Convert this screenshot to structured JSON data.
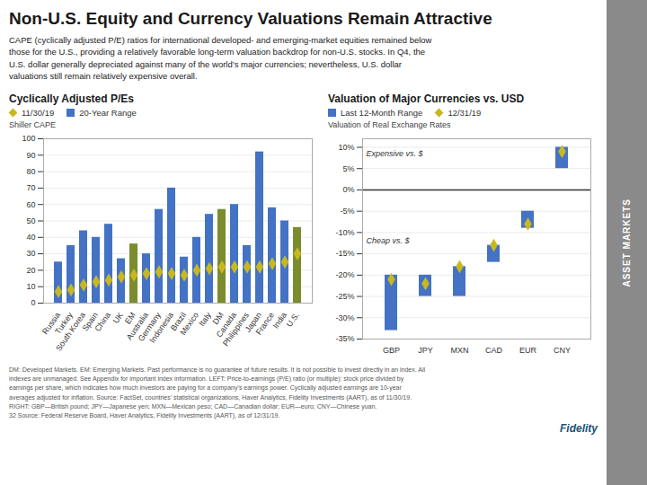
{
  "title": "Non-U.S. Equity and Currency Valuations Remain Attractive",
  "subtitle": "CAPE (cyclically adjusted P/E) ratios for international developed- and emerging-market equities remained below\nthose for the U.S., providing a relatively favorable long-term valuation backdrop for non-U.S. stocks. In Q4, the\nU.S. dollar generally depreciated against many of the world’s major currencies; nevertheless, U.S. dollar\nvaluations still remain relatively expensive overall.",
  "footer": "DM: Developed Markets. EM: Emerging Markets. Past performance is no guarantee of future results. It is not possible to invest directly in an index. All\nindexes are unmanaged. See Appendix for important index information.  LEFT: Price-to-earnings (P/E) ratio (or multiple): stock price divided by\nearnings per share, which indicates how much investors are paying for a company’s earnings power. Cyclically adjusted earnings are 10-year\naverages adjusted for inflation. Source: FactSet, countries’ statistical organizations, Haver Analytics, Fidelity Investments (AART), as of 11/30/19.\nRIGHT: GBP—British pound; JPY—Japanese yen; MXN—Mexican peso; CAD—Canadian dollar; EUR—euro; CNY—Chinese yuan.\n32  Source: Federal Reserve Board, Haver Analytics, Fidelity Investments (AART), as of 12/31/19.",
  "annotations": [
    "ASSET MARKETS",
    "Fidelity"
  ],
  "chart_data": [
    {
      "type": "bar",
      "title": "Cyclically Adjusted P/Es",
      "ylabel": "Shiller CAPE",
      "categories": [
        "Russia",
        "Turkey",
        "South Korea",
        "Spain",
        "China",
        "UK",
        "EM",
        "Australia",
        "Germany",
        "Indonesia",
        "Brazil",
        "Mexico",
        "Italy",
        "DM",
        "Canada",
        "Philippines",
        "Japan",
        "France",
        "India",
        "U.S."
      ],
      "series": [
        {
          "name": "11/30/19",
          "type": "scatter",
          "marker": "diamond",
          "color": "#c8b820",
          "values": [
            7,
            8,
            11,
            13,
            14,
            16,
            17,
            18,
            19,
            18,
            17,
            20,
            21,
            22,
            22,
            22,
            22,
            24,
            25,
            30
          ]
        },
        {
          "name": "20-Year Range",
          "type": "bar",
          "color": "#4472c4",
          "colors": [
            "#4472c4",
            "#4472c4",
            "#4472c4",
            "#4472c4",
            "#4472c4",
            "#4472c4",
            "#7a8c2e",
            "#4472c4",
            "#4472c4",
            "#4472c4",
            "#4472c4",
            "#4472c4",
            "#4472c4",
            "#7a8c2e",
            "#4472c4",
            "#4472c4",
            "#4472c4",
            "#4472c4",
            "#4472c4",
            "#7a8c2e"
          ],
          "values": [
            25,
            35,
            44,
            40,
            48,
            27,
            36,
            30,
            57,
            70,
            28,
            40,
            54,
            57,
            60,
            35,
            92,
            58,
            50,
            46
          ]
        }
      ],
      "ylim": [
        0,
        100
      ],
      "yticks": [
        0,
        10,
        20,
        30,
        40,
        50,
        60,
        70,
        80,
        90,
        100
      ],
      "grid": true,
      "legend": "top left"
    },
    {
      "type": "bar",
      "title": "Valuation of Major Currencies vs. USD",
      "ylabel": "Valuation of Real Exchange Rates",
      "categories": [
        "GBP",
        "JPY",
        "MXN",
        "CAD",
        "EUR",
        "CNY"
      ],
      "series": [
        {
          "name": "Last 12-Month Range",
          "type": "bar",
          "color": "#4472c4",
          "low": [
            -33,
            -25,
            -25,
            -17,
            -9,
            5
          ],
          "high": [
            -20,
            -20,
            -18,
            -13,
            -5,
            10
          ]
        },
        {
          "name": "12/31/19",
          "type": "scatter",
          "marker": "diamond",
          "color": "#c8b820",
          "values": [
            -21,
            -22,
            -18,
            -13,
            -8,
            9
          ]
        }
      ],
      "ylim": [
        -35,
        12
      ],
      "yticks": [
        {
          "value": -35,
          "label": "-35%"
        },
        {
          "value": -30,
          "label": "-30%"
        },
        {
          "value": -25,
          "label": "-25%"
        },
        {
          "value": -20,
          "label": "-20%"
        },
        {
          "value": -15,
          "label": "-15%"
        },
        {
          "value": -10,
          "label": "-10%"
        },
        {
          "value": -5,
          "label": "-5%"
        },
        {
          "value": 0,
          "label": "0%"
        },
        {
          "value": 5,
          "label": "5%"
        },
        {
          "value": 10,
          "label": "10%"
        }
      ],
      "grid": true,
      "legend": "top left",
      "annotations": [
        {
          "text": "Expensive vs. $",
          "y": 8.5
        },
        {
          "text": "Cheap vs. $",
          "y": -12
        }
      ]
    }
  ]
}
